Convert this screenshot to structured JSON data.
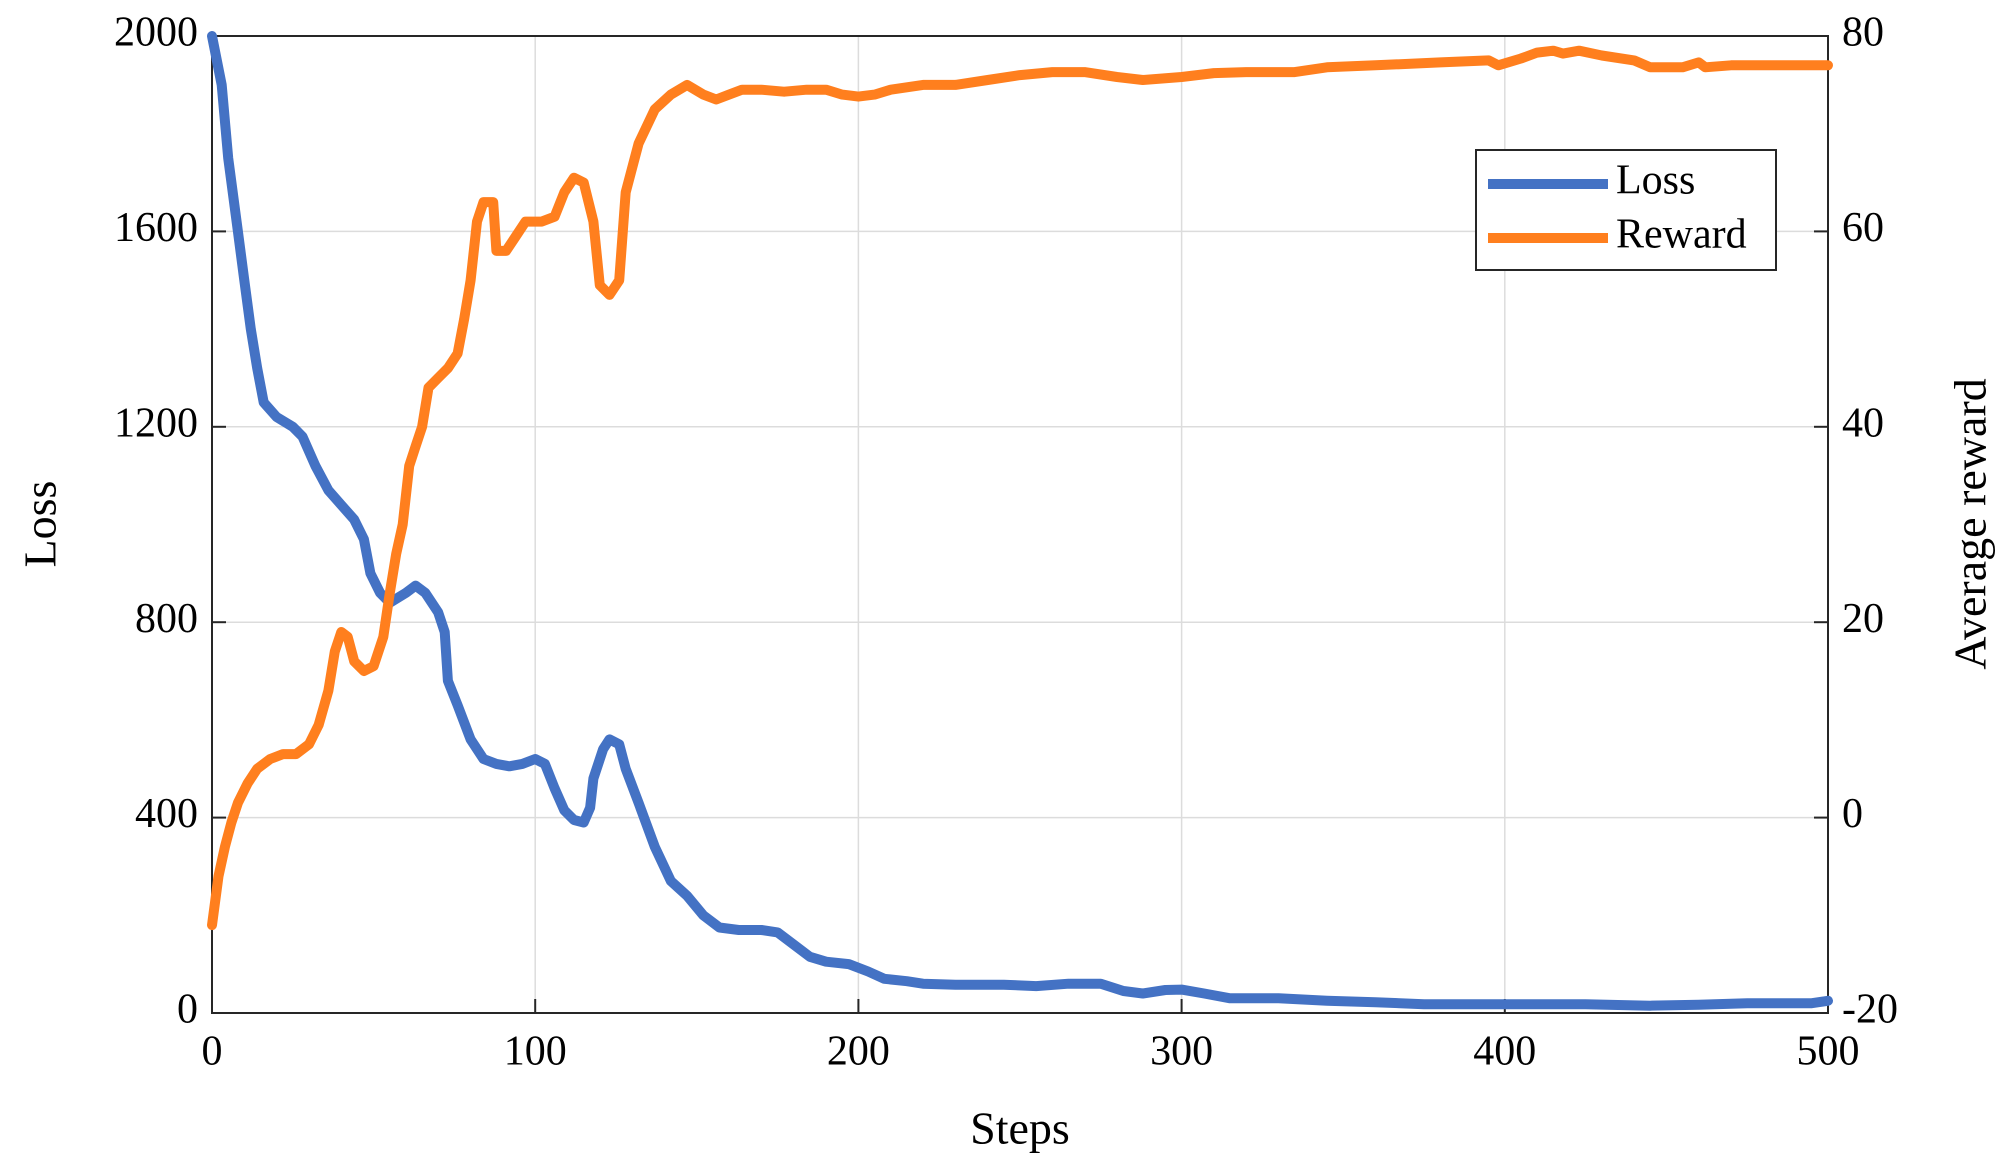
{
  "chart_data": {
    "type": "line",
    "xlabel": "Steps",
    "ylabel": "Loss",
    "y2label": "Average reward",
    "xlim": [
      0,
      500
    ],
    "xticks": [
      0,
      100,
      200,
      300,
      400,
      500
    ],
    "ylim": [
      0,
      2000
    ],
    "yticks": [
      0,
      400,
      800,
      1200,
      1600,
      2000
    ],
    "y2lim": [
      -20,
      80
    ],
    "y2ticks": [
      -20,
      0,
      20,
      40,
      60,
      80
    ],
    "grid": true,
    "legend": "upper right",
    "series": [
      {
        "name": "Loss",
        "color": "#4472C4",
        "x": [
          0,
          3,
          5,
          8,
          10,
          12,
          14,
          16,
          20,
          25,
          28,
          32,
          36,
          40,
          44,
          47,
          49,
          52,
          55,
          60,
          63,
          66,
          70,
          72,
          73,
          76,
          80,
          84,
          88,
          92,
          96,
          100,
          103,
          106,
          109,
          112,
          115,
          117,
          118,
          121,
          123,
          126,
          128,
          132,
          137,
          142,
          147,
          152,
          157,
          163,
          170,
          175,
          180,
          185,
          190,
          197,
          203,
          208,
          215,
          220,
          230,
          245,
          255,
          265,
          275,
          282,
          288,
          295,
          300,
          307,
          315,
          330,
          345,
          360,
          375,
          400,
          425,
          445,
          460,
          475,
          495,
          500
        ],
        "values": [
          2000,
          1900,
          1750,
          1600,
          1500,
          1400,
          1320,
          1250,
          1220,
          1200,
          1180,
          1120,
          1070,
          1040,
          1010,
          970,
          900,
          860,
          840,
          860,
          875,
          860,
          820,
          780,
          680,
          630,
          560,
          520,
          510,
          505,
          510,
          520,
          510,
          460,
          415,
          395,
          390,
          420,
          480,
          540,
          560,
          550,
          500,
          430,
          340,
          270,
          240,
          200,
          175,
          170,
          170,
          165,
          140,
          115,
          105,
          100,
          85,
          70,
          65,
          60,
          58,
          58,
          55,
          60,
          60,
          45,
          40,
          47,
          48,
          40,
          30,
          30,
          25,
          22,
          18,
          18,
          18,
          15,
          17,
          20,
          20,
          25
        ]
      },
      {
        "name": "Reward",
        "color": "#FF7F1E",
        "axis": "y2",
        "x": [
          0,
          2,
          4,
          6,
          8,
          11,
          14,
          18,
          22,
          26,
          30,
          33,
          36,
          38,
          40,
          42,
          44,
          47,
          50,
          53,
          55,
          57,
          59,
          61,
          63,
          65,
          67,
          70,
          73,
          76,
          78,
          80,
          82,
          84,
          87,
          88,
          91,
          94,
          97,
          102,
          106,
          109,
          112,
          115,
          118,
          120,
          123,
          126,
          128,
          132,
          137,
          142,
          147,
          152,
          156,
          160,
          164,
          170,
          177,
          184,
          190,
          195,
          200,
          205,
          210,
          220,
          230,
          240,
          250,
          260,
          270,
          280,
          288,
          300,
          310,
          320,
          335,
          345,
          360,
          380,
          395,
          398,
          405,
          410,
          415,
          418,
          423,
          430,
          440,
          445,
          455,
          460,
          462,
          470,
          500
        ],
        "values": [
          -11,
          -6,
          -3,
          -0.5,
          1.5,
          3.5,
          5,
          6,
          6.5,
          6.5,
          7.5,
          9.5,
          13,
          17,
          19,
          18.5,
          16,
          15,
          15.5,
          18.5,
          23,
          27,
          30,
          36,
          38,
          40,
          44,
          45,
          46,
          47.5,
          51,
          55,
          61,
          63,
          63,
          58,
          58,
          59.5,
          61,
          61,
          61.5,
          64,
          65.5,
          65,
          61,
          54.5,
          53.5,
          55,
          64,
          69,
          72.5,
          74,
          75,
          74,
          73.5,
          74,
          74.5,
          74.5,
          74.3,
          74.5,
          74.5,
          74,
          73.8,
          74,
          74.5,
          75,
          75,
          75.5,
          76,
          76.3,
          76.3,
          75.8,
          75.5,
          75.8,
          76.2,
          76.3,
          76.3,
          76.8,
          77,
          77.3,
          77.5,
          77,
          77.7,
          78.3,
          78.5,
          78.2,
          78.5,
          78,
          77.5,
          76.8,
          76.8,
          77.3,
          76.8,
          77,
          77
        ]
      }
    ]
  }
}
